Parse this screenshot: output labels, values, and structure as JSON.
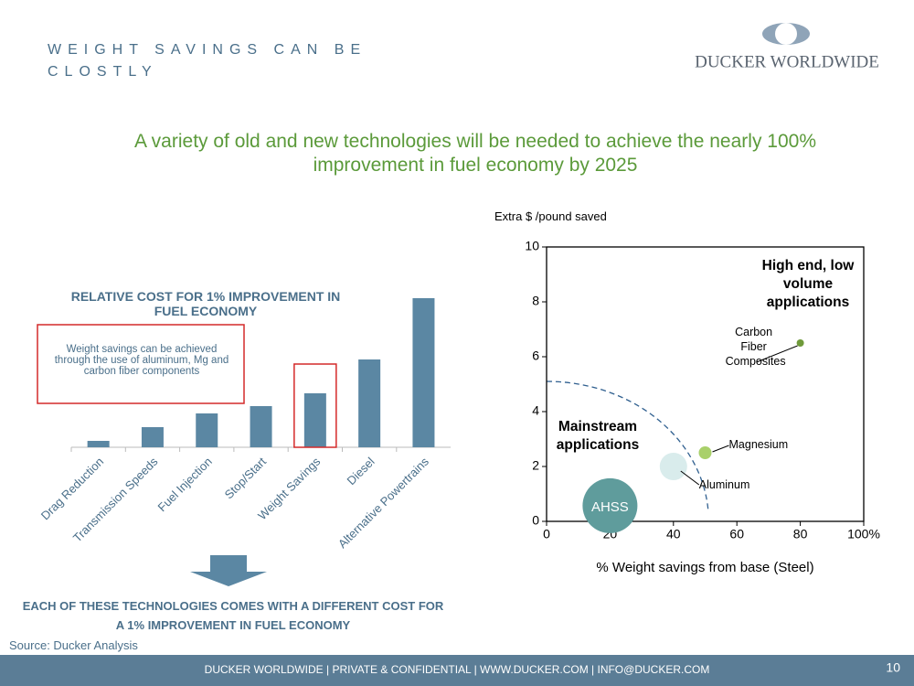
{
  "header": {
    "title": "WEIGHT SAVINGS CAN BE CLOSTLY",
    "logo": "DUCKER WORLDWIDE",
    "subtitle": "A variety of  old and new technologies will be needed to achieve the nearly 100% improvement in fuel economy by 2025"
  },
  "chart_data": [
    {
      "type": "bar",
      "title": "RELATIVE COST FOR 1% IMPROVEMENT IN FUEL ECONOMY",
      "categories": [
        "Drag Reduction",
        "Transmission Speeds",
        "Fuel Injection",
        "Stop/Start",
        "Weight Savings",
        "Diesel",
        "Alternative Powertrains"
      ],
      "values": [
        7,
        22,
        37,
        45,
        59,
        96,
        163
      ],
      "color": "#5b87a3",
      "highlight": "Weight Savings",
      "annotation": "Weight savings can be achieved through the use of aluminum, Mg and carbon fiber components"
    },
    {
      "type": "bubble",
      "ylabel": "Extra $ /pound saved",
      "xlabel": "% Weight savings from base (Steel)",
      "xlim": [
        0,
        100
      ],
      "xticks": [
        0,
        20,
        40,
        60,
        80,
        {
          "value": 100,
          "label": "100%"
        }
      ],
      "ylim": [
        0,
        10
      ],
      "yticks": [
        0,
        2,
        4,
        6,
        8,
        10
      ],
      "labels": [
        "AHSS",
        "Aluminum",
        "Magnesium",
        "Carbon Fiber Composites"
      ],
      "x": [
        20,
        40,
        50,
        80
      ],
      "values": [
        0.57,
        2,
        2.5,
        6.5
      ],
      "sizes": [
        30,
        15,
        7,
        4
      ],
      "colors": [
        "#5f9c9c",
        "#d9ecec",
        "#a9d06a",
        "#6f9a3a"
      ],
      "annotations": [
        "High end, low volume applications",
        "Mainstream applications"
      ]
    }
  ],
  "conclusion": "EACH OF THESE TECHNOLOGIES COMES WITH A DIFFERENT COST  FOR A 1% IMPROVEMENT IN FUEL ECONOMY",
  "source": "Source: Ducker Analysis",
  "footer": {
    "text": "DUCKER WORLDWIDE | PRIVATE & CONFIDENTIAL | WWW.DUCKER.COM | INFO@DUCKER.COM",
    "page": 10
  }
}
